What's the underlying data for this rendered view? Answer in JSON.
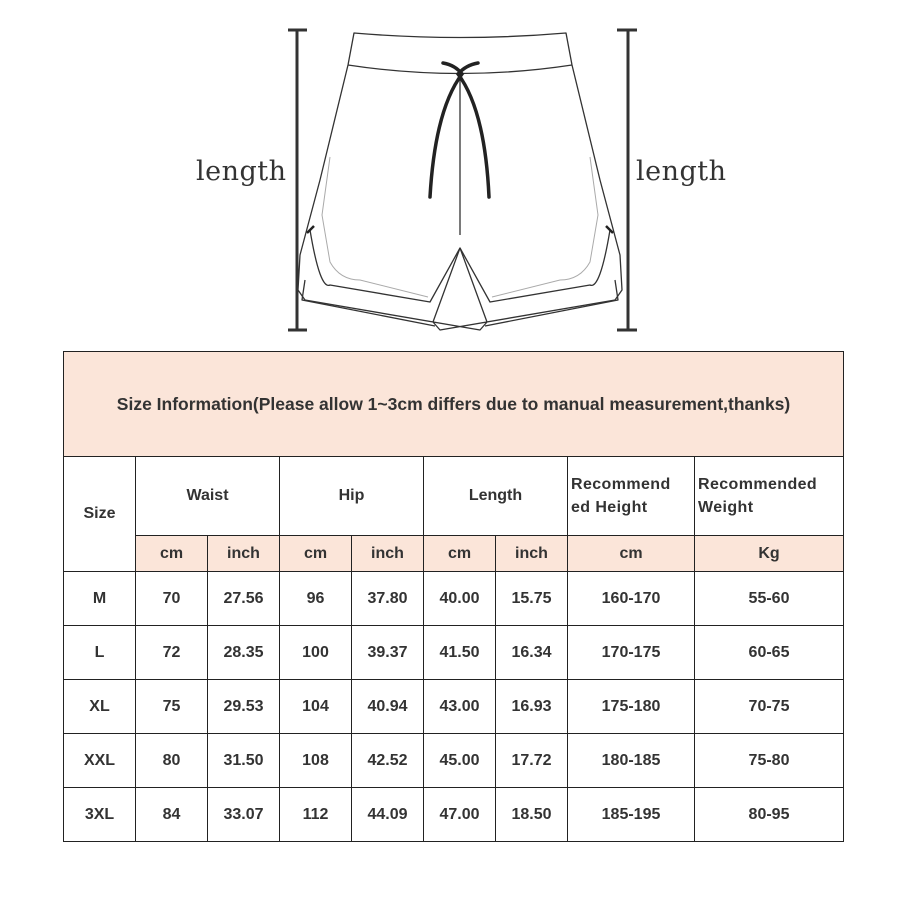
{
  "diagram": {
    "left_label": "length",
    "right_label": "length"
  },
  "table": {
    "title": "Size Information(Please allow 1~3cm differs due to manual measurement,thanks)",
    "colors": {
      "header_bg": "#fbe5d9",
      "border": "#222222",
      "text": "#333333"
    },
    "headers": {
      "size": "Size",
      "waist": "Waist",
      "hip": "Hip",
      "length": "Length",
      "height_line1": "Recommend",
      "height_line2": "ed Height",
      "weight_line1": "Recommended",
      "weight_line2": "Weight"
    },
    "units": [
      "cm",
      "inch",
      "cm",
      "inch",
      "cm",
      "inch",
      "cm",
      "Kg"
    ],
    "rows": [
      [
        "M",
        "70",
        "27.56",
        "96",
        "37.80",
        "40.00",
        "15.75",
        "160-170",
        "55-60"
      ],
      [
        "L",
        "72",
        "28.35",
        "100",
        "39.37",
        "41.50",
        "16.34",
        "170-175",
        "60-65"
      ],
      [
        "XL",
        "75",
        "29.53",
        "104",
        "40.94",
        "43.00",
        "16.93",
        "175-180",
        "70-75"
      ],
      [
        "XXL",
        "80",
        "31.50",
        "108",
        "42.52",
        "45.00",
        "17.72",
        "180-185",
        "75-80"
      ],
      [
        "3XL",
        "84",
        "33.07",
        "112",
        "44.09",
        "47.00",
        "18.50",
        "185-195",
        "80-95"
      ]
    ]
  }
}
